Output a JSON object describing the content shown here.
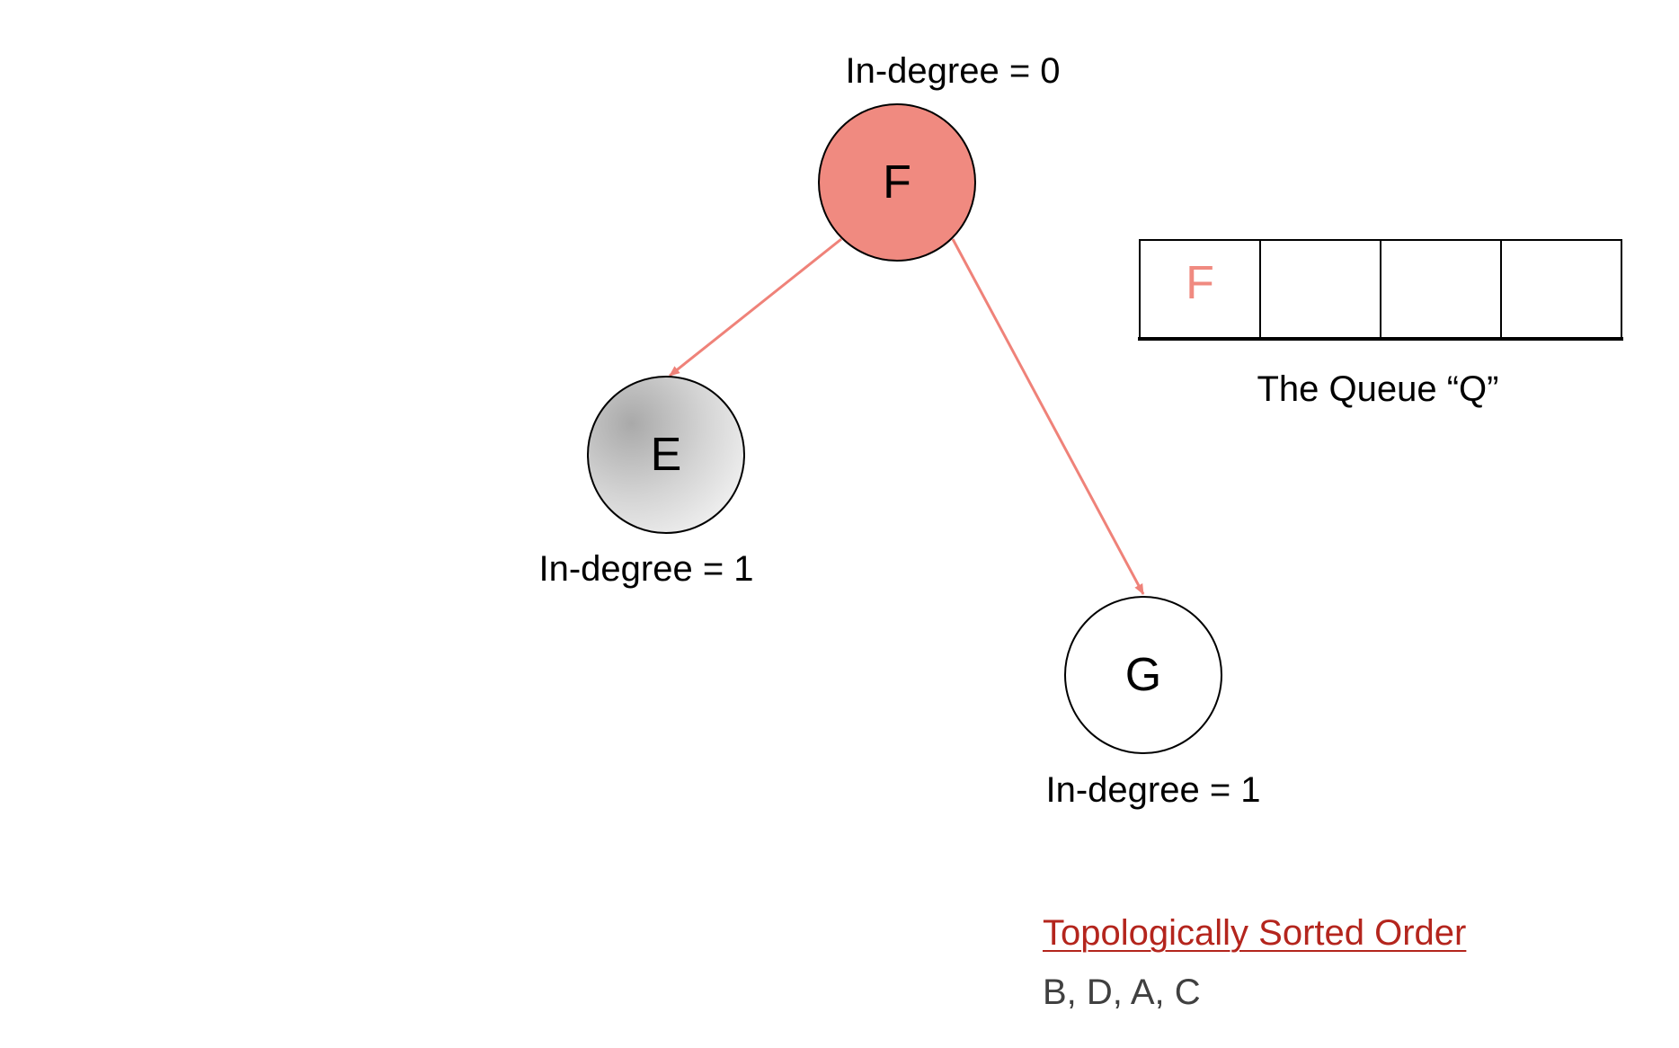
{
  "colors": {
    "highlight": "#f08a80",
    "edge": "#ef8279",
    "heading": "#b4251d",
    "values_text": "#404040",
    "stroke": "#000000"
  },
  "nodes": {
    "F": {
      "label": "F",
      "in_degree_text": "In-degree = 0",
      "state": "processing"
    },
    "E": {
      "label": "E",
      "in_degree_text": "In-degree = 1",
      "state": "gray"
    },
    "G": {
      "label": "G",
      "in_degree_text": "In-degree = 1",
      "state": "unvisited"
    }
  },
  "edges": [
    {
      "from": "F",
      "to": "E"
    },
    {
      "from": "F",
      "to": "G"
    }
  ],
  "queue": {
    "caption": "The Queue “Q”",
    "cells": [
      "F",
      "",
      "",
      ""
    ]
  },
  "sorted_order": {
    "heading": "Topologically Sorted Order",
    "values": "B, D, A, C"
  }
}
